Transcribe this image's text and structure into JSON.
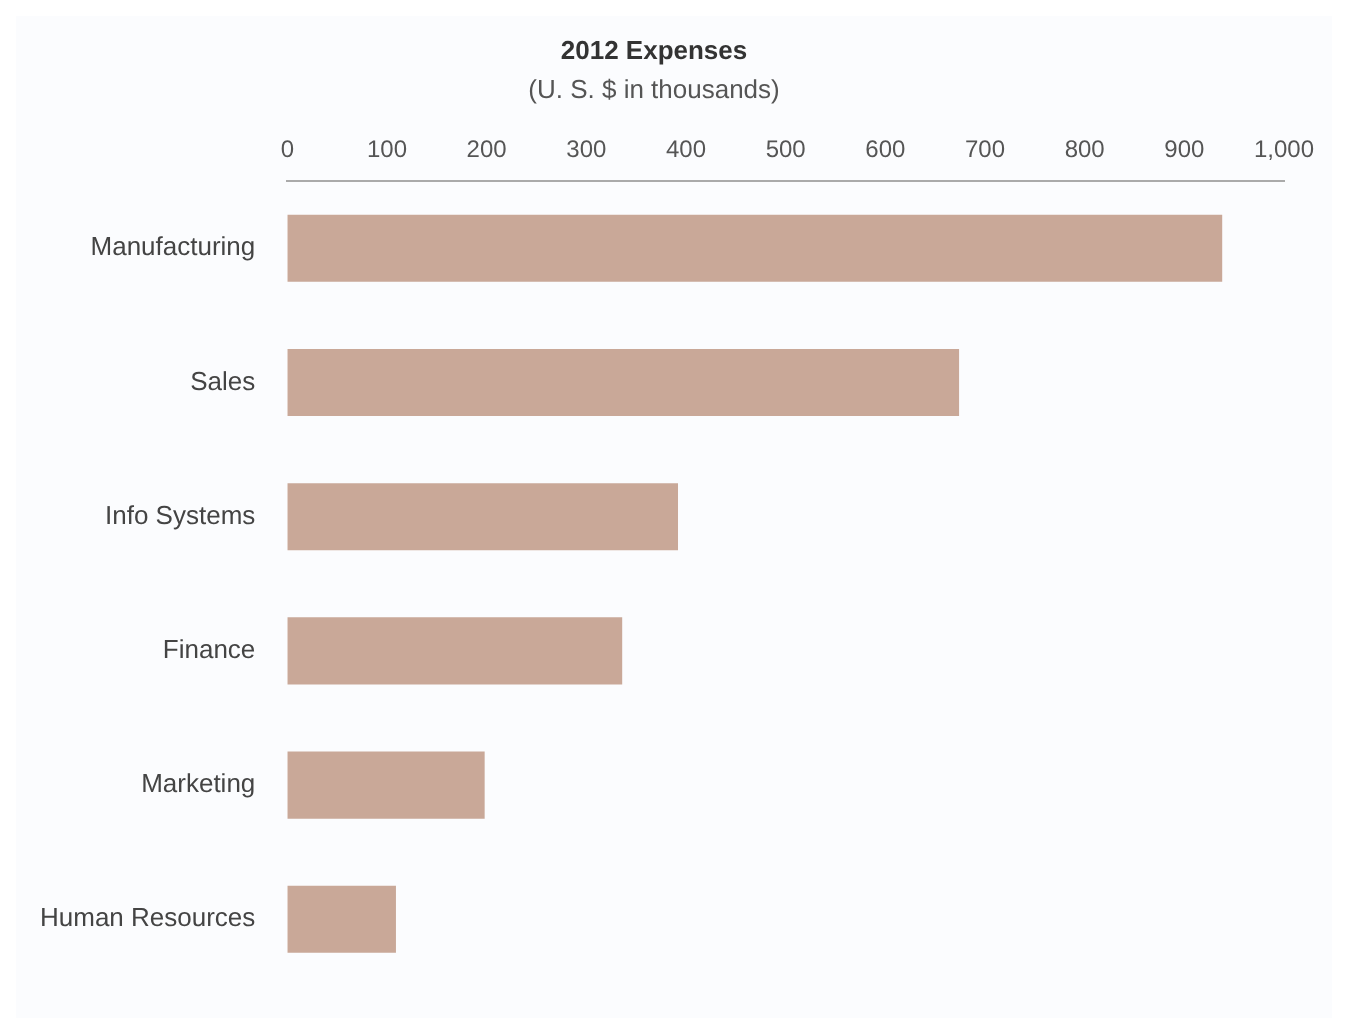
{
  "chart_data": {
    "type": "bar",
    "orientation": "horizontal",
    "title": "2012 Expenses",
    "subtitle": "(U. S. $ in thousands)",
    "categories": [
      "Manufacturing",
      "Sales",
      "Info Systems",
      "Finance",
      "Marketing",
      "Human Resources"
    ],
    "values": [
      938,
      674,
      392,
      336,
      198,
      109
    ],
    "color": "#c9a898",
    "xlim": [
      0,
      1000
    ],
    "xticks": [
      0,
      100,
      200,
      300,
      400,
      500,
      600,
      700,
      800,
      900,
      {
        "value": 1000,
        "label": "1,000"
      }
    ],
    "grid": false,
    "legend": false
  }
}
